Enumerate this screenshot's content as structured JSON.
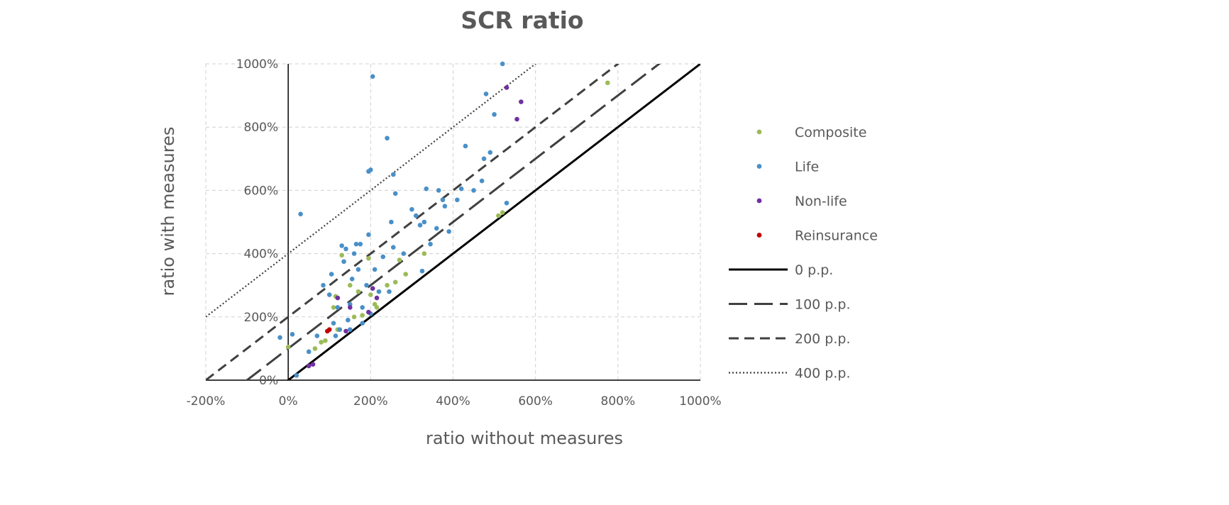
{
  "chart_data": {
    "type": "scatter",
    "title": "SCR ratio",
    "xlabel": "ratio without measures",
    "ylabel": "ratio with measures",
    "xlim": [
      -200,
      1000
    ],
    "ylim": [
      0,
      1000
    ],
    "x_ticks": [
      -200,
      0,
      200,
      400,
      600,
      800,
      1000
    ],
    "x_tick_labels": [
      "-200%",
      "0%",
      "200%",
      "400%",
      "600%",
      "800%",
      "1000%"
    ],
    "y_ticks": [
      0,
      200,
      400,
      600,
      800,
      1000
    ],
    "y_tick_labels": [
      "0%",
      "200%",
      "400%",
      "600%",
      "800%",
      "1000%"
    ],
    "grid": true,
    "legend_position": "right",
    "series": [
      {
        "name": "Composite",
        "color": "#9bbb59",
        "points": [
          [
            0,
            105
          ],
          [
            65,
            100
          ],
          [
            80,
            120
          ],
          [
            90,
            125
          ],
          [
            110,
            230
          ],
          [
            115,
            265
          ],
          [
            120,
            160
          ],
          [
            130,
            395
          ],
          [
            150,
            300
          ],
          [
            160,
            200
          ],
          [
            170,
            280
          ],
          [
            180,
            205
          ],
          [
            195,
            385
          ],
          [
            200,
            270
          ],
          [
            210,
            240
          ],
          [
            215,
            230
          ],
          [
            240,
            300
          ],
          [
            260,
            310
          ],
          [
            270,
            380
          ],
          [
            285,
            335
          ],
          [
            330,
            400
          ],
          [
            510,
            520
          ],
          [
            520,
            530
          ],
          [
            775,
            940
          ]
        ]
      },
      {
        "name": "Life",
        "color": "#4a90c8",
        "points": [
          [
            -20,
            135
          ],
          [
            10,
            145
          ],
          [
            20,
            15
          ],
          [
            30,
            525
          ],
          [
            50,
            90
          ],
          [
            70,
            140
          ],
          [
            85,
            300
          ],
          [
            100,
            270
          ],
          [
            105,
            335
          ],
          [
            110,
            180
          ],
          [
            115,
            140
          ],
          [
            120,
            230
          ],
          [
            125,
            160
          ],
          [
            130,
            425
          ],
          [
            135,
            375
          ],
          [
            140,
            415
          ],
          [
            145,
            190
          ],
          [
            150,
            240
          ],
          [
            155,
            320
          ],
          [
            160,
            400
          ],
          [
            165,
            430
          ],
          [
            170,
            350
          ],
          [
            175,
            430
          ],
          [
            180,
            230
          ],
          [
            190,
            300
          ],
          [
            195,
            460
          ],
          [
            195,
            660
          ],
          [
            200,
            665
          ],
          [
            205,
            960
          ],
          [
            210,
            350
          ],
          [
            220,
            280
          ],
          [
            230,
            390
          ],
          [
            240,
            765
          ],
          [
            245,
            280
          ],
          [
            250,
            500
          ],
          [
            255,
            420
          ],
          [
            255,
            650
          ],
          [
            260,
            590
          ],
          [
            280,
            400
          ],
          [
            300,
            540
          ],
          [
            310,
            520
          ],
          [
            320,
            490
          ],
          [
            325,
            345
          ],
          [
            330,
            500
          ],
          [
            335,
            605
          ],
          [
            345,
            430
          ],
          [
            360,
            480
          ],
          [
            365,
            600
          ],
          [
            375,
            570
          ],
          [
            380,
            550
          ],
          [
            390,
            470
          ],
          [
            410,
            570
          ],
          [
            420,
            605
          ],
          [
            430,
            740
          ],
          [
            450,
            600
          ],
          [
            470,
            630
          ],
          [
            475,
            700
          ],
          [
            480,
            905
          ],
          [
            490,
            720
          ],
          [
            500,
            840
          ],
          [
            520,
            1000
          ],
          [
            530,
            560
          ],
          [
            200,
            210
          ],
          [
            150,
            160
          ],
          [
            180,
            180
          ]
        ]
      },
      {
        "name": "Non-life",
        "color": "#7030a0",
        "points": [
          [
            50,
            45
          ],
          [
            60,
            50
          ],
          [
            120,
            260
          ],
          [
            140,
            155
          ],
          [
            150,
            230
          ],
          [
            195,
            215
          ],
          [
            205,
            290
          ],
          [
            215,
            260
          ],
          [
            530,
            925
          ],
          [
            555,
            825
          ],
          [
            565,
            880
          ]
        ]
      },
      {
        "name": "Reinsurance",
        "color": "#c00000",
        "points": [
          [
            95,
            155
          ],
          [
            100,
            160
          ]
        ]
      }
    ],
    "reference_lines": [
      {
        "name": "0 p.p.",
        "offset": 0,
        "style": "solid"
      },
      {
        "name": "100 p.p.",
        "offset": 100,
        "style": "long-dash"
      },
      {
        "name": "200 p.p.",
        "offset": 200,
        "style": "dash"
      },
      {
        "name": "400 p.p.",
        "offset": 400,
        "style": "dot"
      }
    ]
  }
}
